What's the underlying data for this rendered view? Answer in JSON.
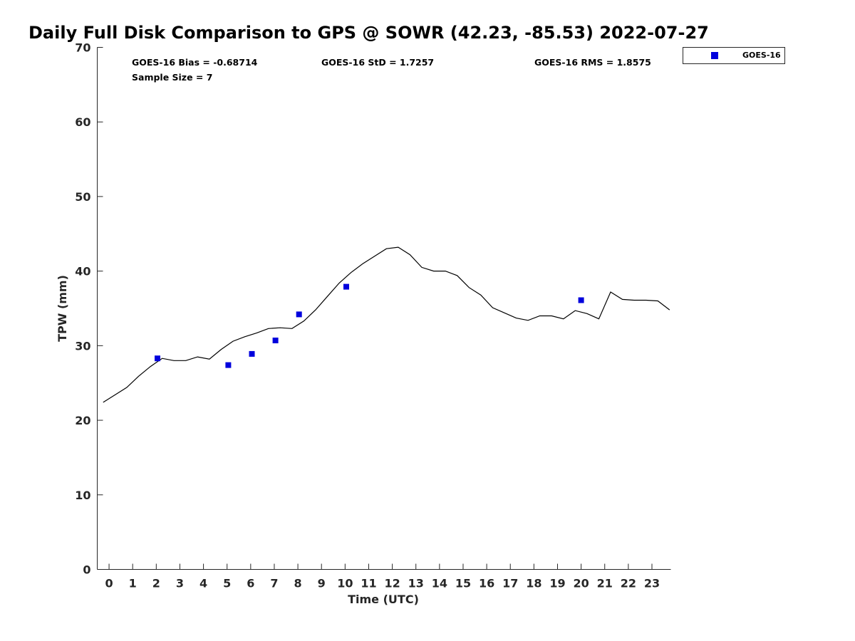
{
  "chart_data": {
    "type": "scatter",
    "title": "Daily Full Disk Comparison to GPS @ SOWR (42.23, -85.53) 2022-07-27",
    "xlabel": "Time (UTC)",
    "ylabel": "TPW (mm)",
    "xlim": [
      -0.5,
      23.8
    ],
    "ylim": [
      0,
      70
    ],
    "x_ticks": [
      0,
      1,
      2,
      3,
      4,
      5,
      6,
      7,
      8,
      9,
      10,
      11,
      12,
      13,
      14,
      15,
      16,
      17,
      18,
      19,
      20,
      21,
      22,
      23
    ],
    "y_ticks": [
      0,
      10,
      20,
      30,
      40,
      50,
      60,
      70
    ],
    "grid": false,
    "legend_position": "top-right",
    "stats": {
      "bias": "GOES-16 Bias = -0.68714",
      "std": "GOES-16 StD = 1.7257",
      "rms": "GOES-16 RMS = 1.8575",
      "sample_size": "Sample Size = 7"
    },
    "series": [
      {
        "type": "line",
        "color": "#000000",
        "x": [
          -0.25,
          0.25,
          0.75,
          1.25,
          1.75,
          2.25,
          2.75,
          3.25,
          3.75,
          4.25,
          4.75,
          5.25,
          5.75,
          6.25,
          6.75,
          7.25,
          7.75,
          8.25,
          8.75,
          9.25,
          9.75,
          10.25,
          10.75,
          11.25,
          11.75,
          12.25,
          12.75,
          13.25,
          13.75,
          14.25,
          14.75,
          15.25,
          15.75,
          16.25,
          16.75,
          17.25,
          17.75,
          18.25,
          18.75,
          19.25,
          19.75,
          20.25,
          20.75,
          21.25,
          21.75,
          22.25,
          22.75,
          23.25,
          23.75
        ],
        "y": [
          22.4,
          23.4,
          24.4,
          25.9,
          27.2,
          28.3,
          28.0,
          28.0,
          28.5,
          28.2,
          29.5,
          30.6,
          31.2,
          31.7,
          32.3,
          32.4,
          32.3,
          33.3,
          34.8,
          36.6,
          38.4,
          39.8,
          41.0,
          42.0,
          43.0,
          43.2,
          42.2,
          40.5,
          40.0,
          40.0,
          39.4,
          37.8,
          36.8,
          35.1,
          34.4,
          33.7,
          33.4,
          34.0,
          34.0,
          33.6,
          34.7,
          34.3,
          33.6,
          37.2,
          36.2,
          36.1,
          36.1,
          36.0,
          34.8
        ]
      },
      {
        "name": "GOES-16",
        "type": "scatter",
        "color": "#0000dd",
        "x": [
          2.05,
          5.05,
          6.05,
          7.05,
          8.05,
          10.05,
          20.0
        ],
        "y": [
          28.3,
          27.4,
          28.9,
          30.7,
          34.2,
          37.9,
          36.1
        ]
      }
    ]
  }
}
